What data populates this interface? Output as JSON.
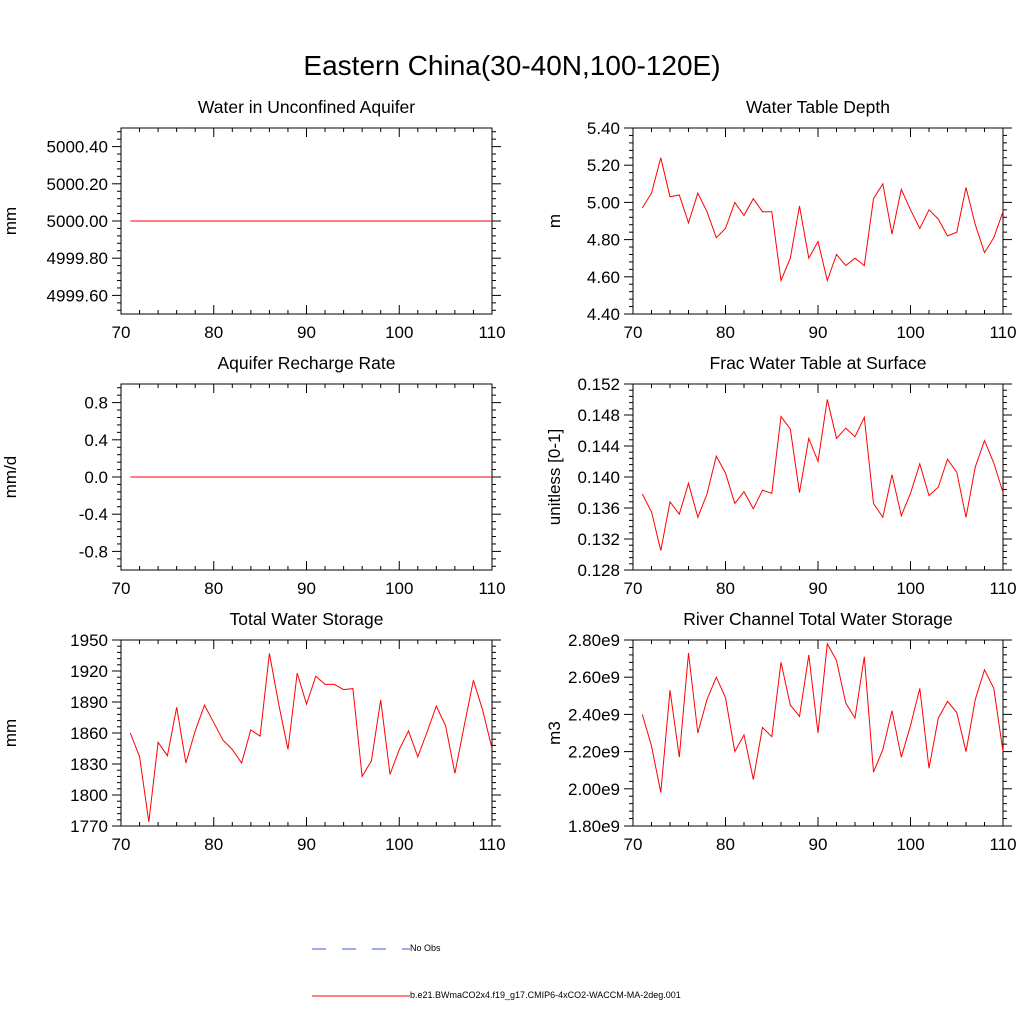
{
  "figure": {
    "title": "Eastern China(30-40N,100-120E)"
  },
  "legend": [
    {
      "label": "No Obs",
      "color": "#3b5bd6",
      "style": "dashed"
    },
    {
      "label": "b.e21.BWmaCO2x4.f19_g17.CMIP6-4xCO2-WACCM-MA-2deg.001",
      "color": "#ff0000",
      "style": "solid"
    }
  ],
  "chart_data": [
    {
      "type": "line",
      "title": "Water in Unconfined Aquifer",
      "xlabel": "",
      "ylabel": "mm",
      "xlim": [
        70,
        110
      ],
      "ylim": [
        4999.5,
        5000.5
      ],
      "xticks": [
        70,
        80,
        90,
        100,
        110
      ],
      "yticks": [
        4999.6,
        4999.8,
        5000.0,
        5000.2,
        5000.4
      ],
      "ytick_labels": [
        "4999.60",
        "4999.80",
        "5000.00",
        "5000.20",
        "5000.40"
      ],
      "series": [
        {
          "name": "b.e21.BWmaCO2x4.f19_g17.CMIP6-4xCO2-WACCM-MA-2deg.001",
          "x": [
            71,
            110
          ],
          "y": [
            5000.0,
            5000.0
          ]
        }
      ]
    },
    {
      "type": "line",
      "title": "Water Table Depth",
      "xlabel": "",
      "ylabel": "m",
      "xlim": [
        70,
        110
      ],
      "ylim": [
        4.4,
        5.4
      ],
      "xticks": [
        70,
        80,
        90,
        100,
        110
      ],
      "yticks": [
        4.4,
        4.6,
        4.8,
        5.0,
        5.2,
        5.4
      ],
      "ytick_labels": [
        "4.40",
        "4.60",
        "4.80",
        "5.00",
        "5.20",
        "5.40"
      ],
      "series": [
        {
          "name": "b.e21.BWmaCO2x4.f19_g17.CMIP6-4xCO2-WACCM-MA-2deg.001",
          "x": [
            71,
            72,
            73,
            74,
            75,
            76,
            77,
            78,
            79,
            80,
            81,
            82,
            83,
            84,
            85,
            86,
            87,
            88,
            89,
            90,
            91,
            92,
            93,
            94,
            95,
            96,
            97,
            98,
            99,
            100,
            101,
            102,
            103,
            104,
            105,
            106,
            107,
            108,
            109,
            110
          ],
          "y": [
            4.97,
            5.05,
            5.24,
            5.03,
            5.04,
            4.89,
            5.05,
            4.95,
            4.81,
            4.86,
            5.0,
            4.93,
            5.02,
            4.95,
            4.95,
            4.58,
            4.7,
            4.98,
            4.7,
            4.79,
            4.58,
            4.72,
            4.66,
            4.7,
            4.66,
            5.02,
            5.1,
            4.83,
            5.07,
            4.96,
            4.86,
            4.96,
            4.91,
            4.82,
            4.84,
            5.08,
            4.88,
            4.73,
            4.81,
            4.95
          ]
        }
      ]
    },
    {
      "type": "line",
      "title": "Aquifer Recharge Rate",
      "xlabel": "",
      "ylabel": "mm/d",
      "xlim": [
        70,
        110
      ],
      "ylim": [
        -1.0,
        1.0
      ],
      "xticks": [
        70,
        80,
        90,
        100,
        110
      ],
      "yticks": [
        -0.8,
        -0.4,
        0.0,
        0.4,
        0.8
      ],
      "ytick_labels": [
        "-0.8",
        "-0.4",
        "0.0",
        "0.4",
        "0.8"
      ],
      "series": [
        {
          "name": "b.e21.BWmaCO2x4.f19_g17.CMIP6-4xCO2-WACCM-MA-2deg.001",
          "x": [
            71,
            110
          ],
          "y": [
            0.0,
            0.0
          ]
        }
      ]
    },
    {
      "type": "line",
      "title": "Frac Water Table at Surface",
      "xlabel": "",
      "ylabel": "unitless [0-1]",
      "xlim": [
        70,
        110
      ],
      "ylim": [
        0.128,
        0.152
      ],
      "xticks": [
        70,
        80,
        90,
        100,
        110
      ],
      "yticks": [
        0.128,
        0.132,
        0.136,
        0.14,
        0.144,
        0.148,
        0.152
      ],
      "ytick_labels": [
        "0.128",
        "0.132",
        "0.136",
        "0.140",
        "0.144",
        "0.148",
        "0.152"
      ],
      "series": [
        {
          "name": "b.e21.BWmaCO2x4.f19_g17.CMIP6-4xCO2-WACCM-MA-2deg.001",
          "x": [
            71,
            72,
            73,
            74,
            75,
            76,
            77,
            78,
            79,
            80,
            81,
            82,
            83,
            84,
            85,
            86,
            87,
            88,
            89,
            90,
            91,
            92,
            93,
            94,
            95,
            96,
            97,
            98,
            99,
            100,
            101,
            102,
            103,
            104,
            105,
            106,
            107,
            108,
            109,
            110
          ],
          "y": [
            0.1378,
            0.1355,
            0.1305,
            0.1368,
            0.1352,
            0.1392,
            0.1348,
            0.1378,
            0.1427,
            0.1405,
            0.1366,
            0.1381,
            0.1359,
            0.1383,
            0.1379,
            0.1478,
            0.1462,
            0.138,
            0.145,
            0.142,
            0.15,
            0.145,
            0.1463,
            0.1452,
            0.1477,
            0.1366,
            0.1348,
            0.1403,
            0.135,
            0.1379,
            0.1417,
            0.1376,
            0.1387,
            0.1423,
            0.1406,
            0.1348,
            0.1413,
            0.1447,
            0.1418,
            0.138
          ]
        }
      ]
    },
    {
      "type": "line",
      "title": "Total Water Storage",
      "xlabel": "",
      "ylabel": "mm",
      "xlim": [
        70,
        110
      ],
      "ylim": [
        1770,
        1950
      ],
      "xticks": [
        70,
        80,
        90,
        100,
        110
      ],
      "yticks": [
        1770,
        1800,
        1830,
        1860,
        1890,
        1920,
        1950
      ],
      "ytick_labels": [
        "1770",
        "1800",
        "1830",
        "1860",
        "1890",
        "1920",
        "1950"
      ],
      "series": [
        {
          "name": "b.e21.BWmaCO2x4.f19_g17.CMIP6-4xCO2-WACCM-MA-2deg.001",
          "x": [
            71,
            72,
            73,
            74,
            75,
            76,
            77,
            78,
            79,
            80,
            81,
            82,
            83,
            84,
            85,
            86,
            87,
            88,
            89,
            90,
            91,
            92,
            93,
            94,
            95,
            96,
            97,
            98,
            99,
            100,
            101,
            102,
            103,
            104,
            105,
            106,
            107,
            108,
            109,
            110
          ],
          "y": [
            1860,
            1837,
            1774,
            1851,
            1838,
            1885,
            1831,
            1862,
            1887,
            1870,
            1853,
            1844,
            1831,
            1863,
            1857,
            1937,
            1888,
            1844,
            1918,
            1888,
            1915,
            1907,
            1907,
            1902,
            1903,
            1818,
            1833,
            1892,
            1820,
            1844,
            1862,
            1837,
            1861,
            1886,
            1867,
            1821,
            1867,
            1911,
            1882,
            1845
          ]
        }
      ]
    },
    {
      "type": "line",
      "title": "River Channel Total Water Storage",
      "xlabel": "",
      "ylabel": "m3",
      "xlim": [
        70,
        110
      ],
      "ylim": [
        1800000000.0,
        2800000000.0
      ],
      "xticks": [
        70,
        80,
        90,
        100,
        110
      ],
      "yticks": [
        1800000000.0,
        2000000000.0,
        2200000000.0,
        2400000000.0,
        2600000000.0,
        2800000000.0
      ],
      "ytick_labels": [
        "1.80e9",
        "2.00e9",
        "2.20e9",
        "2.40e9",
        "2.60e9",
        "2.80e9"
      ],
      "series": [
        {
          "name": "b.e21.BWmaCO2x4.f19_g17.CMIP6-4xCO2-WACCM-MA-2deg.001",
          "x": [
            71,
            72,
            73,
            74,
            75,
            76,
            77,
            78,
            79,
            80,
            81,
            82,
            83,
            84,
            85,
            86,
            87,
            88,
            89,
            90,
            91,
            92,
            93,
            94,
            95,
            96,
            97,
            98,
            99,
            100,
            101,
            102,
            103,
            104,
            105,
            106,
            107,
            108,
            109,
            110
          ],
          "y": [
            2400000000.0,
            2230000000.0,
            1980000000.0,
            2530000000.0,
            2170000000.0,
            2730000000.0,
            2300000000.0,
            2480000000.0,
            2600000000.0,
            2490000000.0,
            2200000000.0,
            2290000000.0,
            2050000000.0,
            2330000000.0,
            2280000000.0,
            2680000000.0,
            2450000000.0,
            2390000000.0,
            2720000000.0,
            2300000000.0,
            2780000000.0,
            2690000000.0,
            2460000000.0,
            2380000000.0,
            2710000000.0,
            2090000000.0,
            2210000000.0,
            2420000000.0,
            2170000000.0,
            2340000000.0,
            2540000000.0,
            2110000000.0,
            2380000000.0,
            2470000000.0,
            2410000000.0,
            2200000000.0,
            2480000000.0,
            2640000000.0,
            2540000000.0,
            2200000000.0
          ]
        }
      ]
    }
  ]
}
